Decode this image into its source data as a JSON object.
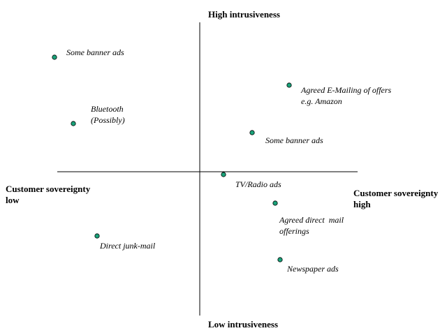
{
  "axes": {
    "top": "High intrusiveness",
    "bottom": "Low intrusiveness",
    "left": [
      "Customer sovereignty",
      "low"
    ],
    "right": [
      "Customer sovereignty",
      "high"
    ]
  },
  "colors": {
    "line": "#000000",
    "point_fill": "#1aa37a",
    "point_stroke": "#000000"
  },
  "points": [
    {
      "lines": [
        "Some banner ads"
      ]
    },
    {
      "lines": [
        "Bluetooth",
        "(Possibly)"
      ]
    },
    {
      "lines": [
        "Agreed E-Mailing of offers",
        "e.g. Amazon"
      ]
    },
    {
      "lines": [
        "Some banner ads"
      ]
    },
    {
      "lines": [
        "TV/Radio ads"
      ]
    },
    {
      "lines": [
        "Agreed direct  mail",
        "offerings"
      ]
    },
    {
      "lines": [
        "Direct junk-mail"
      ]
    },
    {
      "lines": [
        "Newspaper ads"
      ]
    }
  ]
}
